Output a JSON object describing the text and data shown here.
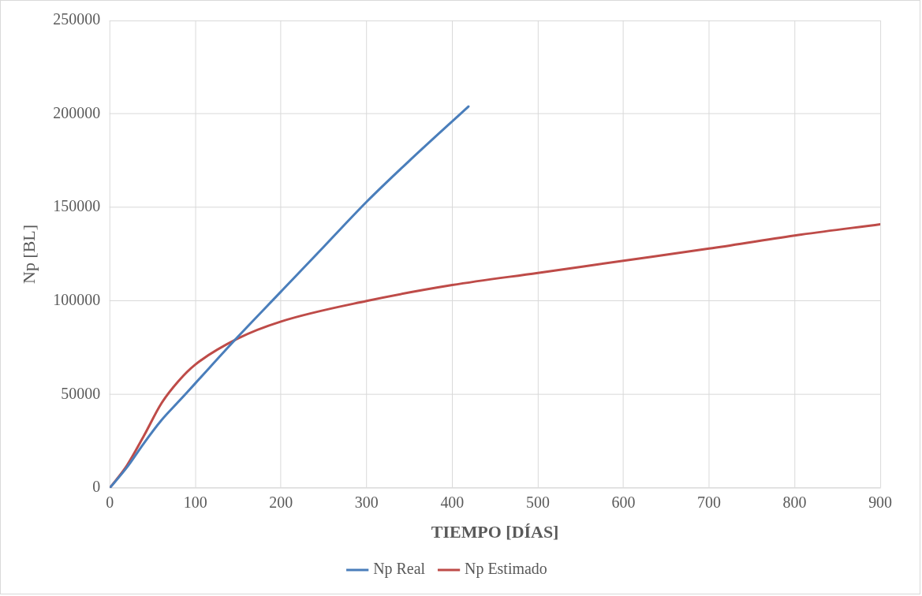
{
  "chart_data": {
    "type": "line",
    "xlabel": "TIEMPO [DÍAS]",
    "ylabel": "Np [BL]",
    "xlim": [
      0,
      900
    ],
    "xticks": [
      0,
      100,
      200,
      300,
      400,
      500,
      600,
      700,
      800,
      900
    ],
    "ylim": [
      0,
      250000
    ],
    "yticks": [
      0,
      50000,
      100000,
      150000,
      200000,
      250000
    ],
    "grid": true,
    "legend": "bottom",
    "marker": "none",
    "line_style": "solid",
    "series": [
      {
        "name": "Np Real",
        "color": "#4a7ebb",
        "x": [
          0,
          20,
          40,
          60,
          80,
          100,
          150,
          200,
          250,
          300,
          350,
          419
        ],
        "values": [
          0,
          11000,
          24000,
          36000,
          46000,
          56000,
          81000,
          105000,
          129000,
          153000,
          175000,
          204000
        ]
      },
      {
        "name": "Np Estimado",
        "color": "#be4b48",
        "x": [
          0,
          20,
          40,
          60,
          80,
          100,
          150,
          200,
          300,
          400,
          500,
          600,
          700,
          800,
          900
        ],
        "values": [
          0,
          12000,
          28000,
          45000,
          57000,
          66000,
          80000,
          89000,
          100000,
          108500,
          115000,
          121500,
          128000,
          135000,
          141000
        ]
      }
    ]
  }
}
